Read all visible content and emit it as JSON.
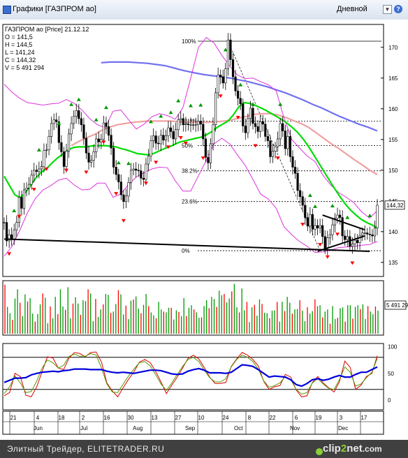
{
  "window": {
    "title": "Графики [ГАЗПРОМ ао]",
    "period": "Дневной",
    "help": "?"
  },
  "legend": {
    "header": "ГАЗПРОМ ао [Price] 21.12.12",
    "open": "O = 141,5",
    "high": "H = 144,5",
    "low": "L = 141,24",
    "close": "C = 144,32",
    "volume": "V = 5 491 294"
  },
  "footer": {
    "site": "Элитный Трейдер, ELITETRADER.RU",
    "logo_main": "clip",
    "logo_two": "2",
    "logo_tail": "net",
    "logo_dot": ".com"
  },
  "colors": {
    "up": "#009900",
    "down": "#ff0000",
    "sma_fast": "#00dd00",
    "sma_mid": "#f0a0a0",
    "sma_slow": "#7070f0",
    "bollinger": "#dd33dd",
    "stoch_k": "#dd0000",
    "stoch_d": "#559900",
    "rsi": "#0000dd",
    "trendline": "#000000"
  },
  "chart_data": [
    {
      "type": "candlestick",
      "title": "ГАЗПРОМ ао [Price] 21.12.12",
      "x_tick_labels": [
        "21",
        "4",
        "18",
        "2",
        "16",
        "30",
        "13",
        "27",
        "10",
        "24",
        "8",
        "22",
        "6",
        "19",
        "3",
        "17"
      ],
      "month_labels": [
        "Jun",
        "Jul",
        "Aug",
        "Sep",
        "Oct",
        "Nov",
        "Dec"
      ],
      "y_tick_labels": [
        "135",
        "140",
        "145",
        "150",
        "155",
        "160",
        "165",
        "170"
      ],
      "ylim": [
        135,
        173
      ],
      "last_price_label": "144,32",
      "last_close": 144.32,
      "fibonacci_levels": [
        {
          "label": "100%",
          "value": 171.0
        },
        {
          "label": "61.8%",
          "value": 158.0
        },
        {
          "label": "50%",
          "value": 154.0
        },
        {
          "label": "38.2%",
          "value": 149.9
        },
        {
          "label": "23.6%",
          "value": 144.9
        },
        {
          "label": "0%",
          "value": 136.9
        }
      ],
      "closes": [
        141.5,
        138.5,
        139.5,
        138.8,
        140.3,
        141.5,
        145.6,
        143.8,
        146.8,
        147.1,
        147.7,
        149.2,
        150.0,
        149.8,
        150.2,
        150.6,
        153.2,
        153.3,
        155.5,
        157.6,
        158.2,
        157.9,
        154.5,
        153.0,
        150.6,
        153.1,
        155.9,
        157.6,
        158.8,
        159.7,
        158.4,
        157.4,
        155.2,
        152.8,
        151.3,
        151.6,
        153.0,
        155.1,
        154.6,
        155.0,
        157.7,
        157.1,
        155.7,
        153.6,
        150.5,
        149.3,
        148.1,
        146.0,
        144.9,
        145.8,
        148.0,
        150.0,
        150.2,
        150.0,
        149.9,
        148.7,
        148.5,
        151.0,
        152.3,
        154.8,
        155.6,
        154.4,
        154.3,
        155.7,
        154.9,
        155.6,
        156.9,
        156.3,
        155.1,
        156.6,
        158.2,
        158.4,
        157.4,
        157.5,
        157.4,
        157.4,
        157.4,
        157.4,
        158.0,
        157.5,
        155.1,
        152.1,
        151.2,
        154.3,
        157.4,
        162.6,
        165.5,
        165.2,
        164.2,
        166.5,
        171.2,
        168.0,
        165.2,
        162.9,
        161.7,
        160.8,
        157.2,
        156.1,
        158.4,
        160.1,
        157.6,
        157.1,
        156.3,
        157.9,
        157.5,
        155.5,
        154.8,
        152.2,
        153.1,
        153.8,
        155.1,
        157.6,
        156.4,
        153.5,
        155.5,
        152.2,
        150.5,
        149.5,
        146.7,
        145.7,
        144.3,
        142.3,
        140.9,
        142.8,
        140.4,
        141.0,
        140.6,
        141.0,
        139.2,
        137.3,
        139.0,
        139.5,
        141.1,
        142.2,
        142.7,
        142.3,
        139.3,
        138.7,
        139.2,
        137.6,
        138.0,
        138.6,
        138.2,
        139.4,
        139.8,
        139.8,
        139.6,
        139.5,
        139.3,
        140.6,
        144.3
      ],
      "sma_fast": [
        149.0,
        147.5,
        146.0,
        145.5,
        146.4,
        147.6,
        148.8,
        149.7,
        150.3,
        151.2,
        152.0,
        152.6,
        153.3,
        153.7,
        153.8,
        153.8,
        153.9,
        154.0,
        154.0,
        154.0,
        153.9,
        153.8,
        153.5,
        153.3,
        153.0,
        152.7,
        152.6,
        152.5,
        152.7,
        153.1,
        153.5,
        153.8,
        154.2,
        154.6,
        154.8,
        155.0,
        155.2,
        155.4,
        155.8,
        156.3,
        157.0,
        157.5,
        158.0,
        159.0,
        160.3,
        161.0,
        160.9,
        160.6,
        160.2,
        159.8,
        159.3,
        158.8,
        158.3,
        157.7,
        157.0,
        156.2,
        155.2,
        154.0,
        152.6,
        151.2,
        149.8,
        148.4,
        147.0,
        145.7,
        144.5,
        143.5,
        142.7,
        142.0,
        141.5,
        141.1,
        140.6
      ],
      "sma_mid": [
        154.0,
        154.7,
        155.3,
        155.8,
        156.5,
        157.0,
        157.4,
        157.6,
        157.8,
        157.9,
        158.0,
        158.0,
        158.0,
        158.0,
        157.9,
        157.9,
        157.8,
        157.8,
        157.8,
        157.9,
        158.0,
        158.2,
        158.5,
        158.8,
        159.1,
        159.2,
        159.2,
        159.0,
        158.6,
        158.1,
        157.6,
        157.0,
        156.1,
        155.2,
        154.3,
        153.5,
        152.6,
        151.7,
        150.9,
        150.0,
        149.3
      ],
      "sma_slow": [
        167.5,
        167.6,
        167.6,
        167.6,
        167.5,
        167.4,
        167.2,
        167.0,
        166.6,
        166.2,
        165.9,
        165.6,
        165.4,
        165.2,
        165.0,
        164.7,
        164.4,
        164.0,
        163.6,
        163.1,
        162.6,
        162.0,
        161.4,
        160.7,
        160.1,
        159.4,
        158.7,
        158.1,
        157.5,
        157.0,
        156.4
      ],
      "bollinger_upper": [
        164.0,
        162.7,
        161.7,
        161.0,
        160.8,
        160.6,
        160.8,
        160.9,
        161.5,
        160.9,
        159.8,
        158.4,
        157.4,
        156.9,
        159.6,
        159.8,
        158.2,
        156.7,
        157.5,
        158.7,
        159.2,
        158.9,
        158.3,
        160.2,
        165.0,
        170.0,
        171.6,
        170.7,
        168.7,
        167.0,
        165.5,
        164.9,
        165.0,
        164.4,
        163.9,
        162.9,
        158.5,
        155.0,
        153.6,
        152.3,
        151.4,
        149.2,
        147.6,
        146.4,
        145.6,
        144.7,
        143.2,
        142.2,
        143.4
      ],
      "bollinger_lower": [
        136.0,
        137.6,
        140.2,
        143.1,
        145.4,
        146.8,
        147.5,
        148.4,
        148.7,
        147.6,
        146.8,
        146.9,
        147.9,
        147.9,
        145.6,
        146.1,
        147.7,
        148.9,
        149.6,
        150.2,
        150.5,
        150.4,
        148.3,
        146.6,
        146.6,
        149.1,
        151.6,
        154.3,
        155.2,
        154.3,
        152.5,
        150.8,
        148.5,
        146.1,
        145.3,
        143.8,
        140.8,
        139.5,
        138.4,
        137.6,
        136.6,
        136.7,
        137.0,
        137.4,
        137.5,
        137.6,
        137.8,
        137.9,
        138.4
      ],
      "trendlines": [
        {
          "from": [
            0,
            138.8
          ],
          "to": [
            147,
            136.8
          ]
        },
        {
          "from": [
            128,
            142.7
          ],
          "to": [
            145,
            140.3
          ]
        },
        {
          "from": [
            126,
            136.8
          ],
          "to": [
            145,
            139.3
          ]
        }
      ],
      "swing_highs": [
        4,
        14,
        22,
        27,
        30,
        37,
        41,
        46,
        50,
        59,
        63,
        67,
        70,
        75,
        79,
        89,
        95,
        100,
        111,
        123,
        125,
        132,
        138,
        147
      ],
      "swing_lows": [
        2,
        6,
        12,
        17,
        25,
        33,
        40,
        45,
        48,
        57,
        61,
        66,
        71,
        73,
        80,
        87,
        94,
        101,
        110,
        120,
        127,
        130,
        134,
        140
      ]
    },
    {
      "type": "bar",
      "title": "Volume",
      "last_value_label": "5 491 29",
      "values": [
        11.7,
        6.4,
        4.9,
        3.3,
        8.4,
        10.6,
        7.4,
        4.2,
        9.4,
        7.7,
        8.5,
        4.8,
        2.9,
        4.7,
        7.0,
        9.6,
        8.6,
        2.5,
        6.5,
        3.7,
        8.8,
        4.7,
        10.6,
        6.5,
        5.7,
        11.1,
        3.7,
        7.2,
        8.7,
        7.2,
        4.5,
        8.0,
        7.8,
        10.6,
        9.6,
        3.0,
        8.3,
        4.0,
        5.8,
        7.0,
        9.5,
        9.3,
        5.0,
        5.3,
        7.1,
        10.4,
        9.4,
        4.6,
        6.7,
        3.5,
        7.9,
        8.2,
        8.9,
        6.0,
        4.9,
        6.9,
        9.5,
        6.6,
        5.1,
        4.4,
        3.7,
        7.6,
        5.8,
        5.3,
        5.1,
        6.2,
        6.2,
        3.4,
        5.6,
        5.2,
        4.2,
        8.5,
        4.2,
        6.2,
        6.8,
        5.8,
        5.1,
        3.8,
        3.9,
        6.6,
        8.0,
        6.1,
        8.8,
        8.3,
        6.4,
        10.3,
        9.2,
        9.5,
        7.5,
        8.4,
        10.1,
        11.9,
        6.3,
        5.1,
        10.8,
        5.6,
        7.6,
        2.8,
        6.3,
        6.9,
        4.3,
        8.2,
        7.1,
        5.0,
        4.9,
        3.7,
        5.5,
        5.6,
        7.6,
        2.9,
        7.6,
        5.4,
        8.8,
        7.4,
        4.8,
        5.8,
        5.9,
        8.0,
        5.5,
        3.0,
        6.3,
        4.8,
        5.4,
        8.2,
        6.6,
        6.8,
        3.9,
        5.3,
        5.8,
        2.4,
        6.6,
        3.5,
        3.8,
        6.1,
        6.3,
        2.9,
        6.8,
        6.8,
        3.6,
        6.4,
        6.8,
        5.9,
        7.0,
        3.5,
        6.6,
        5.3,
        4.7,
        6.5,
        5.5
      ]
    },
    {
      "type": "line",
      "title": "Oscillators",
      "y_tick_labels": [
        "0",
        "50",
        "100"
      ],
      "ylim": [
        -10,
        110
      ],
      "levels": [
        20,
        80
      ],
      "series": [
        {
          "values": [
            33,
            37,
            41,
            41,
            42,
            47,
            50,
            52,
            53,
            54,
            53,
            55,
            56,
            58,
            58,
            58,
            57,
            57,
            57,
            54,
            52,
            51,
            52,
            51,
            50,
            52,
            54,
            56,
            56,
            55,
            52,
            49,
            48,
            49,
            54,
            57,
            59,
            56,
            51,
            51,
            51,
            50,
            52,
            59,
            66,
            65,
            63,
            57,
            50,
            43,
            45,
            44,
            43,
            38,
            29,
            26,
            31,
            38,
            40,
            37,
            39,
            43,
            46,
            43,
            43,
            48,
            52,
            52,
            57,
            62
          ]
        },
        {
          "values": [
            8,
            14,
            50,
            44,
            9,
            6,
            24,
            53,
            81,
            79,
            60,
            57,
            79,
            89,
            87,
            81,
            89,
            90,
            71,
            32,
            17,
            6,
            23,
            39,
            53,
            71,
            76,
            70,
            54,
            34,
            12,
            28,
            43,
            60,
            78,
            84,
            77,
            61,
            43,
            31,
            31,
            33,
            63,
            77,
            89,
            84,
            76,
            64,
            35,
            20,
            25,
            27,
            48,
            43,
            19,
            6,
            8,
            33,
            44,
            32,
            23,
            15,
            34,
            73,
            61,
            20,
            28,
            44,
            50,
            83
          ]
        },
        {
          "values": [
            12,
            25,
            45,
            32,
            14,
            16,
            35,
            60,
            75,
            70,
            60,
            65,
            82,
            86,
            82,
            82,
            87,
            84,
            60,
            30,
            15,
            14,
            30,
            45,
            58,
            70,
            72,
            64,
            48,
            30,
            18,
            32,
            48,
            63,
            76,
            80,
            72,
            56,
            42,
            34,
            34,
            40,
            62,
            76,
            84,
            80,
            72,
            58,
            36,
            24,
            27,
            32,
            44,
            38,
            20,
            11,
            14,
            32,
            40,
            30,
            22,
            20,
            38,
            62,
            52,
            26,
            30,
            42,
            52,
            78
          ]
        }
      ]
    }
  ]
}
